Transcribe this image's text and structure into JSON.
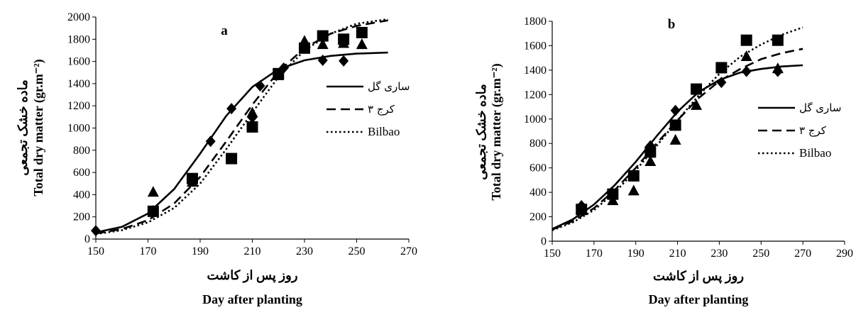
{
  "chart_data": [
    {
      "type": "scatter",
      "panel_label": "a",
      "xlabel": "روز پس از کاشت",
      "xlabel_en": "Day after planting",
      "ylabel": "ماده خشک تجمعی",
      "ylabel_en": "Total dry matter (gr.m⁻²)",
      "xlim": [
        150,
        270
      ],
      "ylim": [
        0,
        2000
      ],
      "xticks": [
        150,
        170,
        190,
        210,
        230,
        250,
        270
      ],
      "yticks": [
        0,
        200,
        400,
        600,
        800,
        1000,
        1200,
        1400,
        1600,
        1800,
        2000
      ],
      "legend_position": "right",
      "series": [
        {
          "name": "ساری گل",
          "line_style": "solid",
          "marker": "diamond",
          "points": [
            [
              150,
              75
            ],
            [
              172,
              255
            ],
            [
              187,
              540
            ],
            [
              194,
              880
            ],
            [
              202,
              1175
            ],
            [
              210,
              1095
            ],
            [
              213,
              1380
            ],
            [
              222,
              1540
            ],
            [
              230,
              1720
            ],
            [
              237,
              1610
            ],
            [
              245,
              1605
            ]
          ],
          "fit": [
            [
              150,
              60
            ],
            [
              160,
              110
            ],
            [
              170,
              230
            ],
            [
              180,
              450
            ],
            [
              190,
              770
            ],
            [
              200,
              1110
            ],
            [
              210,
              1370
            ],
            [
              220,
              1530
            ],
            [
              230,
              1610
            ],
            [
              240,
              1650
            ],
            [
              250,
              1670
            ],
            [
              262,
              1680
            ]
          ]
        },
        {
          "name": "کرج ۳",
          "line_style": "dashed",
          "marker": "triangle",
          "points": [
            [
              172,
              420
            ],
            [
              187,
              510
            ],
            [
              210,
              1135
            ],
            [
              220,
              1470
            ],
            [
              230,
              1780
            ],
            [
              237,
              1750
            ],
            [
              245,
              1760
            ],
            [
              252,
              1750
            ]
          ],
          "fit": [
            [
              150,
              50
            ],
            [
              160,
              90
            ],
            [
              170,
              170
            ],
            [
              180,
              320
            ],
            [
              190,
              560
            ],
            [
              200,
              880
            ],
            [
              210,
              1210
            ],
            [
              220,
              1510
            ],
            [
              230,
              1720
            ],
            [
              240,
              1850
            ],
            [
              250,
              1920
            ],
            [
              262,
              1970
            ]
          ]
        },
        {
          "name": "Bilbao",
          "line_style": "dotted",
          "marker": "square",
          "points": [
            [
              172,
              250
            ],
            [
              187,
              545
            ],
            [
              202,
              725
            ],
            [
              210,
              1010
            ],
            [
              220,
              1490
            ],
            [
              230,
              1720
            ],
            [
              237,
              1830
            ],
            [
              245,
              1800
            ],
            [
              252,
              1860
            ]
          ],
          "fit": [
            [
              150,
              45
            ],
            [
              160,
              80
            ],
            [
              170,
              150
            ],
            [
              180,
              280
            ],
            [
              190,
              500
            ],
            [
              200,
              810
            ],
            [
              210,
              1140
            ],
            [
              220,
              1460
            ],
            [
              230,
              1700
            ],
            [
              240,
              1850
            ],
            [
              250,
              1940
            ],
            [
              262,
              1980
            ]
          ]
        }
      ]
    },
    {
      "type": "scatter",
      "panel_label": "b",
      "xlabel": "روز پس از کاشت",
      "xlabel_en": "Day after planting",
      "ylabel": "ماده خشک تجمعی",
      "ylabel_en": "Total dry matter (gr.m⁻²)",
      "xlim": [
        150,
        290
      ],
      "ylim": [
        0,
        1800
      ],
      "xticks": [
        150,
        170,
        190,
        210,
        230,
        250,
        270,
        290
      ],
      "yticks": [
        0,
        200,
        400,
        600,
        800,
        1000,
        1200,
        1400,
        1600,
        1800
      ],
      "legend_position": "right",
      "series": [
        {
          "name": "ساری گل",
          "line_style": "solid",
          "marker": "diamond",
          "points": [
            [
              164,
              290
            ],
            [
              179,
              390
            ],
            [
              189,
              540
            ],
            [
              197,
              780
            ],
            [
              209,
              1070
            ],
            [
              219,
              1240
            ],
            [
              231,
              1300
            ],
            [
              243,
              1390
            ],
            [
              258,
              1390
            ]
          ],
          "fit": [
            [
              150,
              100
            ],
            [
              160,
              180
            ],
            [
              170,
              300
            ],
            [
              180,
              460
            ],
            [
              190,
              650
            ],
            [
              200,
              860
            ],
            [
              210,
              1060
            ],
            [
              220,
              1220
            ],
            [
              230,
              1320
            ],
            [
              240,
              1380
            ],
            [
              250,
              1410
            ],
            [
              260,
              1430
            ],
            [
              270,
              1440
            ]
          ]
        },
        {
          "name": "کرج ۳",
          "line_style": "dashed",
          "marker": "triangle",
          "points": [
            [
              164,
              270
            ],
            [
              179,
              330
            ],
            [
              189,
              410
            ],
            [
              197,
              650
            ],
            [
              209,
              825
            ],
            [
              219,
              1110
            ],
            [
              231,
              1410
            ],
            [
              243,
              1510
            ],
            [
              258,
              1410
            ]
          ],
          "fit": [
            [
              150,
              95
            ],
            [
              160,
              165
            ],
            [
              170,
              270
            ],
            [
              180,
              420
            ],
            [
              190,
              600
            ],
            [
              200,
              800
            ],
            [
              210,
              990
            ],
            [
              220,
              1170
            ],
            [
              230,
              1310
            ],
            [
              240,
              1410
            ],
            [
              250,
              1490
            ],
            [
              260,
              1540
            ],
            [
              270,
              1575
            ]
          ]
        },
        {
          "name": "Bilbao",
          "line_style": "dotted",
          "marker": "square",
          "points": [
            [
              164,
              260
            ],
            [
              179,
              385
            ],
            [
              189,
              535
            ],
            [
              197,
              730
            ],
            [
              209,
              950
            ],
            [
              219,
              1245
            ],
            [
              231,
              1420
            ],
            [
              243,
              1645
            ],
            [
              258,
              1645
            ]
          ],
          "fit": [
            [
              150,
              90
            ],
            [
              160,
              155
            ],
            [
              170,
              255
            ],
            [
              180,
              400
            ],
            [
              190,
              580
            ],
            [
              200,
              780
            ],
            [
              210,
              990
            ],
            [
              220,
              1190
            ],
            [
              230,
              1370
            ],
            [
              240,
              1510
            ],
            [
              250,
              1610
            ],
            [
              260,
              1690
            ],
            [
              270,
              1750
            ]
          ]
        }
      ]
    }
  ]
}
